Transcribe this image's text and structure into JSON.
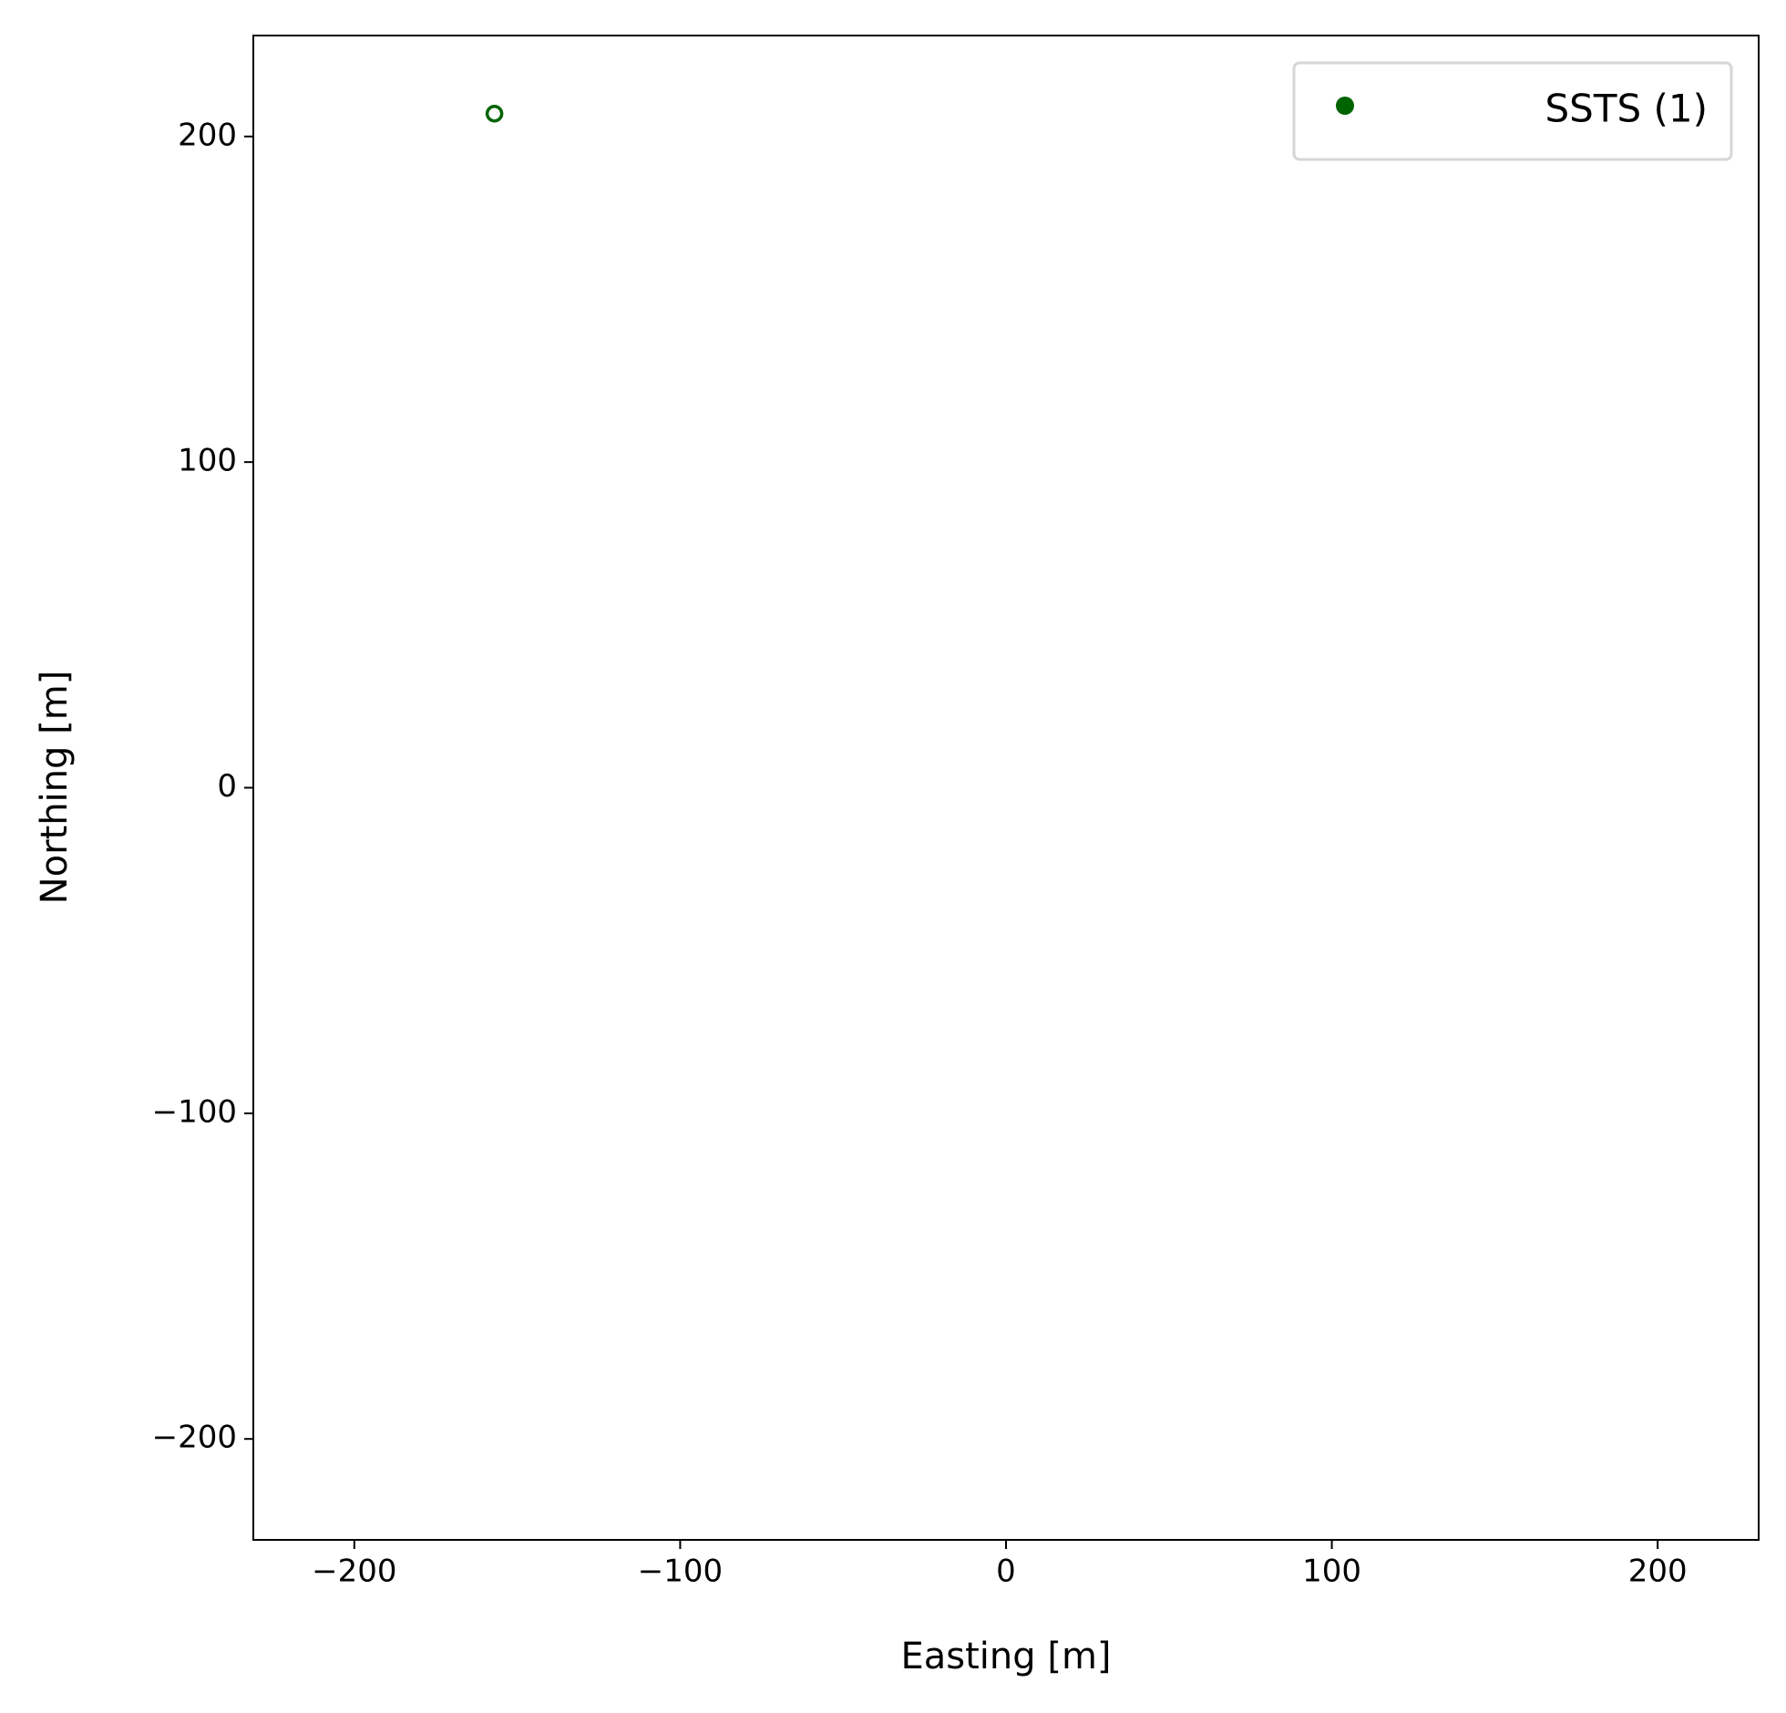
{
  "chart_data": {
    "type": "scatter",
    "x_label": "Easting [m]",
    "y_label": "Northing [m]",
    "series": [
      {
        "name": "SSTS (1)",
        "color": "#006400",
        "x": [
          -157
        ],
        "values": [
          207
        ]
      }
    ],
    "xlim": [
      -231,
      231
    ],
    "ylim": [
      -231,
      231
    ],
    "xticks": [
      {
        "value": -200,
        "label": "−200"
      },
      {
        "value": -100,
        "label": "−100"
      },
      0,
      100,
      200
    ],
    "yticks": [
      {
        "value": -200,
        "label": "−200"
      },
      {
        "value": -100,
        "label": "−100"
      },
      0,
      100,
      200
    ],
    "grid": false,
    "legend": "upper right"
  }
}
